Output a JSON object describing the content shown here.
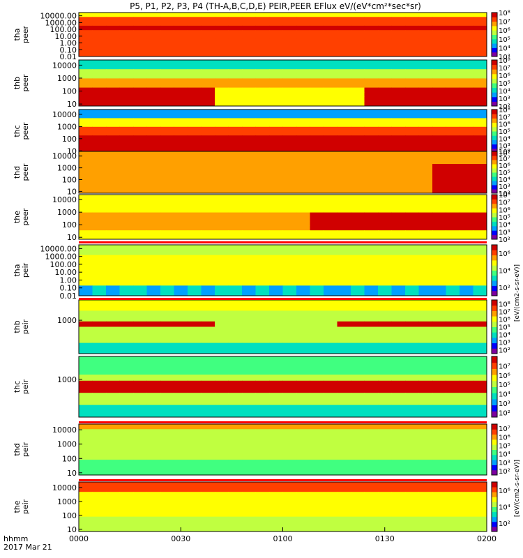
{
  "title": "P5, P1, P2, P3, P4 (TH-A,B,C,D,E) PEIR,PEER EFlux eV/(eV*cm²*sec*sr)",
  "colorbar_label_peer": "[eV/(cm2-s-sr-eV)]",
  "colorbar_label_peir": "[eV/(cm2-s-sr-eV)]",
  "chart_data": {
    "type": "heatmap",
    "x_label_top": "hhmm",
    "x_label_bottom": "2017 Mar 21",
    "x_ticks": [
      "0000",
      "0030",
      "0100",
      "0130",
      "0200"
    ],
    "x_range_minutes": [
      0,
      120
    ],
    "panels": [
      {
        "id": "tha_peer",
        "label1": "tha",
        "label2": "peer",
        "y_ticks": [
          "10000.00",
          "1000.00",
          "100.00",
          "10.00",
          "1.00",
          "0.10",
          "0.01"
        ],
        "y_range": [
          0.01,
          30000
        ],
        "cbar_ticks": [
          "10⁸",
          "10⁷",
          "10⁶",
          "10⁵",
          "10⁴",
          "10³"
        ],
        "cbar_range": [
          3,
          8
        ]
      },
      {
        "id": "thb_peer",
        "label1": "thb",
        "label2": "peer",
        "y_ticks": [
          "10000",
          "1000",
          "100",
          "10"
        ],
        "y_range": [
          7,
          25000
        ],
        "cbar_ticks": [
          "10⁸",
          "10⁷",
          "10⁶",
          "10⁵",
          "10⁴",
          "10³",
          "10²"
        ],
        "cbar_range": [
          2,
          8
        ]
      },
      {
        "id": "thc_peer",
        "label1": "thc",
        "label2": "peer",
        "y_ticks": [
          "10000",
          "1000",
          "100",
          "10"
        ],
        "y_range": [
          7,
          25000
        ],
        "cbar_ticks": [
          "10⁸",
          "10⁷",
          "10⁶",
          "10⁵",
          "10⁴",
          "10³",
          "10²"
        ],
        "cbar_range": [
          2,
          8
        ]
      },
      {
        "id": "thd_peer",
        "label1": "thd",
        "label2": "peer",
        "y_ticks": [
          "10000",
          "1000",
          "100",
          "10"
        ],
        "y_range": [
          7,
          25000
        ],
        "cbar_ticks": [
          "10⁸",
          "10⁷",
          "10⁶",
          "10⁵",
          "10⁴",
          "10³",
          "10²"
        ],
        "cbar_range": [
          2,
          8
        ]
      },
      {
        "id": "the_peer",
        "label1": "the",
        "label2": "peer",
        "y_ticks": [
          "10000",
          "1000",
          "100",
          "10"
        ],
        "y_range": [
          7,
          25000
        ],
        "cbar_ticks": [
          "10⁸",
          "10⁷",
          "10⁶",
          "10⁵",
          "10⁴",
          "10³",
          "10²"
        ],
        "cbar_range": [
          2,
          8
        ]
      },
      {
        "id": "tha_peir",
        "label1": "tha",
        "label2": "peir",
        "y_ticks": [
          "10000.00",
          "1000.00",
          "100.00",
          "10.00",
          "1.00",
          "0.10",
          "0.01"
        ],
        "y_range": [
          0.01,
          30000
        ],
        "cbar_ticks": [
          "10⁶",
          "10⁴",
          "10²"
        ],
        "cbar_range": [
          1,
          7
        ]
      },
      {
        "id": "thb_peir",
        "label1": "thb",
        "label2": "peir",
        "y_ticks": [
          "1000"
        ],
        "y_range": [
          5,
          25000
        ],
        "cbar_ticks": [
          "10⁸",
          "10⁷",
          "10⁶",
          "10⁵",
          "10⁴",
          "10³",
          "10²"
        ],
        "cbar_range": [
          1.5,
          8.5
        ]
      },
      {
        "id": "thc_peir",
        "label1": "thc",
        "label2": "peir",
        "y_ticks": [
          "1000"
        ],
        "y_range": [
          5,
          25000
        ],
        "cbar_ticks": [
          "10⁷",
          "10⁶",
          "10⁵",
          "10⁴",
          "10³",
          "10²"
        ],
        "cbar_range": [
          1.5,
          8
        ]
      },
      {
        "id": "thd_peir",
        "label1": "thd",
        "label2": "peir",
        "y_ticks": [
          "10000",
          "1000",
          "100",
          "10"
        ],
        "y_range": [
          7,
          25000
        ],
        "cbar_ticks": [
          "10⁷",
          "10⁶",
          "10⁵",
          "10⁴",
          "10³",
          "10²"
        ],
        "cbar_range": [
          1.5,
          7.5
        ]
      },
      {
        "id": "the_peir",
        "label1": "the",
        "label2": "peir",
        "y_ticks": [
          "10000",
          "1000",
          "100",
          "10"
        ],
        "y_range": [
          7,
          25000
        ],
        "cbar_ticks": [
          "10⁶",
          "10⁴",
          "10²"
        ],
        "cbar_range": [
          1,
          7
        ]
      }
    ]
  },
  "colors": {
    "colormap": [
      "#7d00a0",
      "#0000ff",
      "#00a0ff",
      "#00e0c0",
      "#40ff80",
      "#c0ff40",
      "#ffff00",
      "#ffa000",
      "#ff4000",
      "#d00000"
    ],
    "flag_red": "#ff0000",
    "flag_yellow": "#ffff00"
  }
}
